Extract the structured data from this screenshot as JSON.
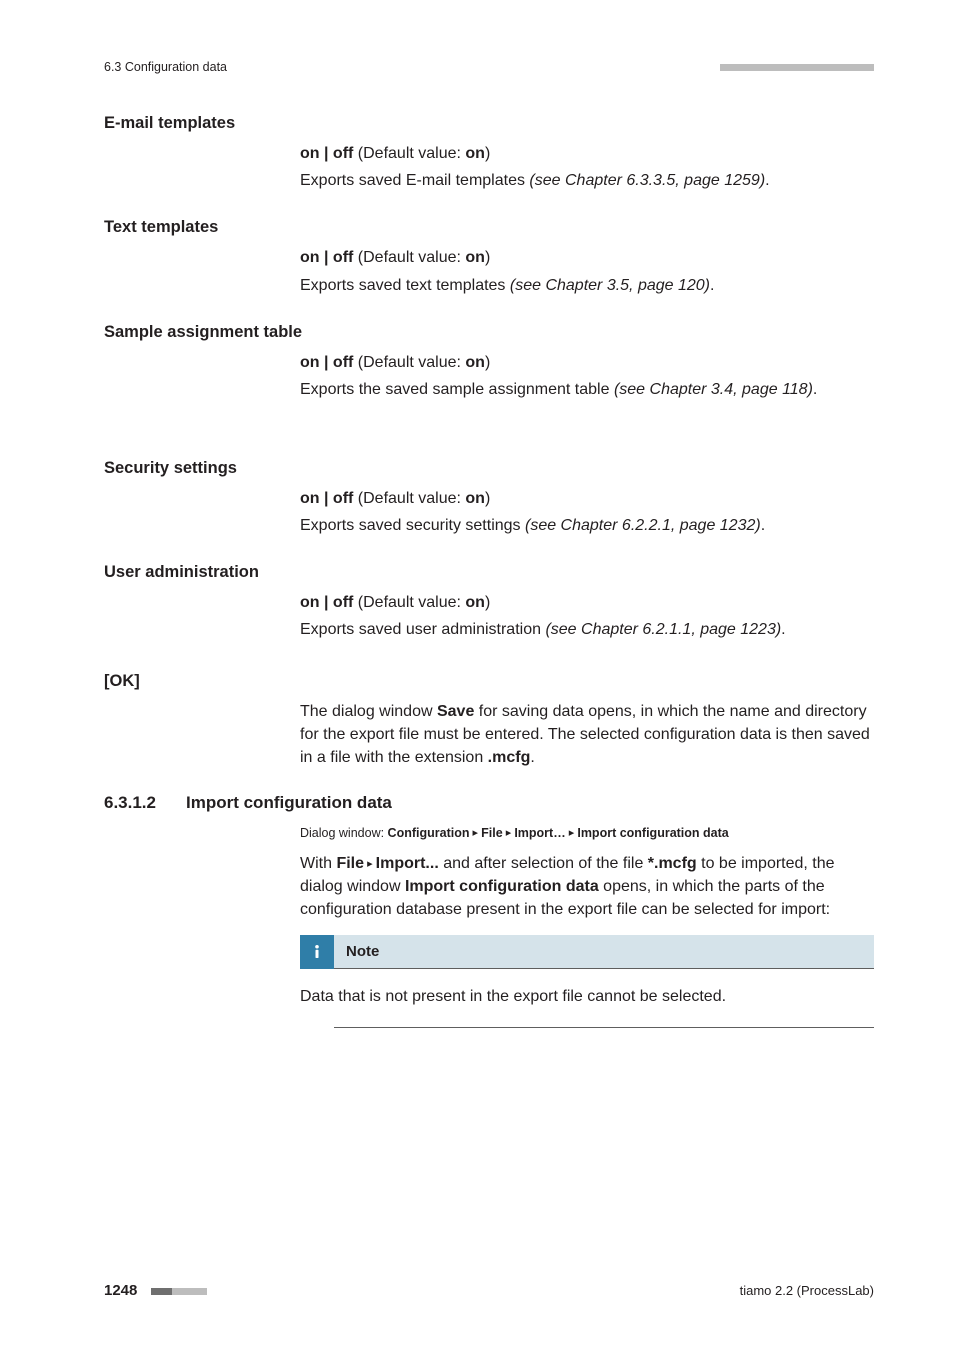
{
  "runningHead": {
    "left": "6.3 Configuration data"
  },
  "tickStrip": {
    "count": 22,
    "darkCount": 0
  },
  "footerTickStrip": {
    "count": 8,
    "darkCount": 3
  },
  "sections": {
    "emailTemplates": {
      "label": "E-mail templates",
      "onoff_prefix": "on | off",
      "onoff_mid": " (Default value: ",
      "onoff_val": "on",
      "onoff_suffix": ")",
      "desc_a": "Exports saved E-mail templates ",
      "desc_i": "(see Chapter 6.3.3.5, page 1259)",
      "desc_z": "."
    },
    "textTemplates": {
      "label": "Text templates",
      "onoff_prefix": "on | off",
      "onoff_mid": " (Default value: ",
      "onoff_val": "on",
      "onoff_suffix": ")",
      "desc_a": "Exports saved text templates ",
      "desc_i": "(see Chapter 3.5, page 120)",
      "desc_z": "."
    },
    "sampleAssign": {
      "label": "Sample assignment table",
      "onoff_prefix": "on | off",
      "onoff_mid": " (Default value: ",
      "onoff_val": "on",
      "onoff_suffix": ")",
      "desc_a": "Exports the saved sample assignment table ",
      "desc_i": "(see Chapter 3.4, page 118)",
      "desc_z": "."
    },
    "security": {
      "label": "Security settings",
      "onoff_prefix": "on | off",
      "onoff_mid": " (Default value: ",
      "onoff_val": "on",
      "onoff_suffix": ")",
      "desc_a": "Exports saved security settings ",
      "desc_i": "(see Chapter 6.2.2.1, page 1232)",
      "desc_z": "."
    },
    "userAdmin": {
      "label": "User administration",
      "onoff_prefix": "on | off",
      "onoff_mid": " (Default value: ",
      "onoff_val": "on",
      "onoff_suffix": ")",
      "desc_a": "Exports saved user administration ",
      "desc_i": "(see Chapter 6.2.1.1, page 1223)",
      "desc_z": "."
    }
  },
  "ok": {
    "label": "[OK]",
    "p1a": "The dialog window ",
    "p1b": "Save",
    "p1c": " for saving data opens, in which the name and directory for the export file must be entered. The selected configuration data is then saved in a file with the extension ",
    "p1d": ".mcfg",
    "p1e": "."
  },
  "h3": {
    "num": "6.3.1.2",
    "title": "Import configuration data",
    "crumb_a": "Dialog window: ",
    "crumb_b1": "Configuration",
    "crumb_s1": " ▸ ",
    "crumb_b2": "File",
    "crumb_s2": " ▸ ",
    "crumb_b3": "Import…",
    "crumb_s3": " ▸ ",
    "crumb_b4": "Import configuration data",
    "p1a": "With ",
    "p1b": "File",
    "p1tri": " ▸ ",
    "p1c": "Import...",
    "p1d": " and after selection of the file ",
    "p1e": "*.mcfg",
    "p1f": " to be imported, the dialog window ",
    "p1g": "Import configuration data",
    "p1h": " opens, in which the parts of the configuration database present in the export file can be selected for import:"
  },
  "note": {
    "title": "Note",
    "body": "Data that is not present in the export file cannot be selected."
  },
  "footer": {
    "page": "1248",
    "right": "tiamo 2.2 (ProcessLab)"
  },
  "colors": {
    "noteHeadBg": "#d5e3ea",
    "noteIconBg": "#2f7ea8",
    "tickLight": "#bdbdbd",
    "tickDark": "#6f6f6f",
    "text": "#231f20"
  },
  "fonts": {
    "body_pt": 16,
    "small_pt": 12.5,
    "label_pt": 16.5,
    "h3_pt": 17
  }
}
